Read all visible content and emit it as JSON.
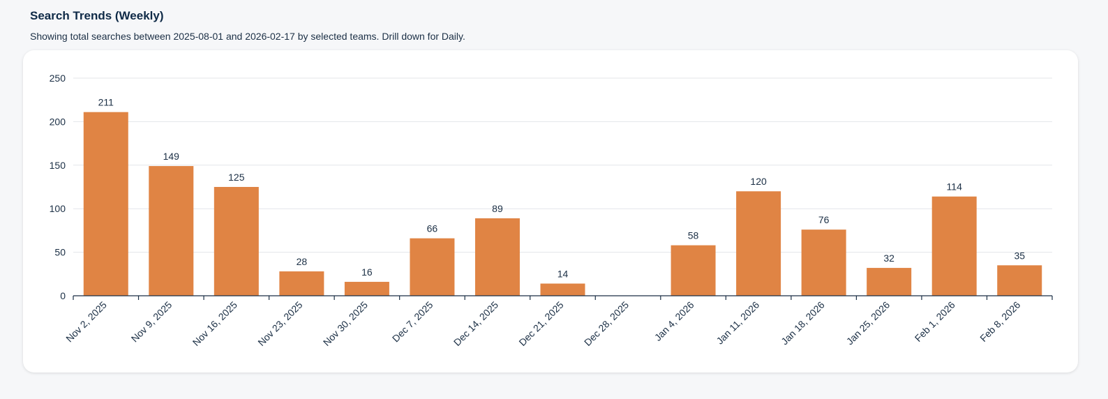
{
  "header": {
    "title": "Search Trends (Weekly)",
    "subtitle": "Showing total searches between 2025-08-01 and 2026-02-17 by selected teams. Drill down for Daily."
  },
  "colors": {
    "bar": "#e08444",
    "grid": "#e3e6ea",
    "axis": "#1b2f45"
  },
  "chart_data": {
    "type": "bar",
    "categories": [
      "Nov 2, 2025",
      "Nov 9, 2025",
      "Nov 16, 2025",
      "Nov 23, 2025",
      "Nov 30, 2025",
      "Dec 7, 2025",
      "Dec 14, 2025",
      "Dec 21, 2025",
      "Dec 28, 2025",
      "Jan 4, 2026",
      "Jan 11, 2026",
      "Jan 18, 2026",
      "Jan 25, 2026",
      "Feb 1, 2026",
      "Feb 8, 2026"
    ],
    "values": [
      211,
      149,
      125,
      28,
      16,
      66,
      89,
      14,
      0,
      58,
      120,
      76,
      32,
      114,
      35
    ],
    "value_labels": [
      "211",
      "149",
      "125",
      "28",
      "16",
      "66",
      "89",
      "14",
      "",
      "58",
      "120",
      "76",
      "32",
      "114",
      "35"
    ],
    "ylim": [
      0,
      250
    ],
    "yticks": [
      0,
      50,
      100,
      150,
      200,
      250
    ],
    "grid": true,
    "legend": "none"
  }
}
